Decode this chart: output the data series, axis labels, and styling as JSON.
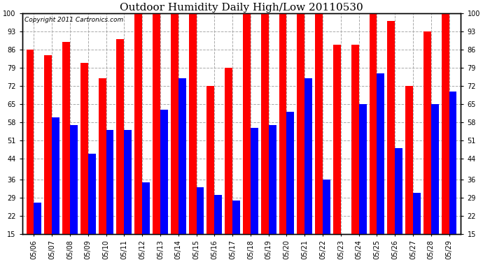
{
  "title": "Outdoor Humidity Daily High/Low 20110530",
  "copyright": "Copyright 2011 Cartronics.com",
  "dates": [
    "05/06",
    "05/07",
    "05/08",
    "05/09",
    "05/10",
    "05/11",
    "05/12",
    "05/13",
    "05/14",
    "05/15",
    "05/16",
    "05/17",
    "05/18",
    "05/19",
    "05/20",
    "05/21",
    "05/22",
    "05/23",
    "05/24",
    "05/25",
    "05/26",
    "05/27",
    "05/28",
    "05/29"
  ],
  "highs": [
    86,
    84,
    89,
    81,
    75,
    90,
    100,
    100,
    100,
    100,
    72,
    79,
    100,
    100,
    100,
    100,
    100,
    88,
    88,
    100,
    97,
    72,
    93,
    100
  ],
  "lows": [
    27,
    60,
    57,
    46,
    55,
    55,
    35,
    63,
    75,
    33,
    30,
    28,
    56,
    57,
    62,
    75,
    36,
    15,
    65,
    77,
    48,
    31,
    65,
    70
  ],
  "high_color": "#FF0000",
  "low_color": "#0000FF",
  "background_color": "#FFFFFF",
  "grid_color": "#AAAAAA",
  "border_color": "#000000",
  "ymin": 15,
  "ymax": 100,
  "yticks": [
    15,
    22,
    29,
    36,
    44,
    51,
    58,
    65,
    72,
    79,
    86,
    93,
    100
  ],
  "bar_width": 0.42,
  "title_fontsize": 11,
  "tick_fontsize": 7,
  "copyright_fontsize": 6.5
}
